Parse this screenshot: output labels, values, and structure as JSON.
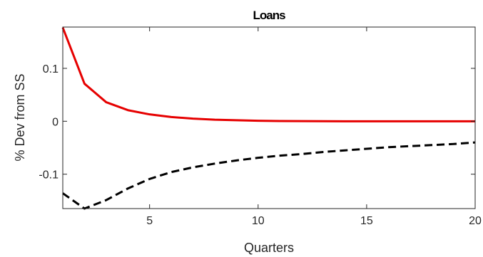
{
  "chart_data": {
    "type": "line",
    "title": "Loans",
    "xlabel": "Quarters",
    "ylabel": "% Dev from SS",
    "xlim": [
      1,
      20
    ],
    "ylim": [
      -0.165,
      0.178
    ],
    "x_ticks": [
      5,
      10,
      15,
      20
    ],
    "y_ticks": [
      -0.1,
      0,
      0.1
    ],
    "x_tick_labels": [
      "5",
      "10",
      "15",
      "20"
    ],
    "y_tick_labels": [
      "-0.1",
      "0",
      "0.1"
    ],
    "grid": false,
    "series": [
      {
        "color": "#e60000",
        "dash": "solid",
        "x": [
          1,
          2,
          3,
          4,
          5,
          6,
          7,
          8,
          9,
          10,
          11,
          12,
          13,
          14,
          15,
          16,
          17,
          18,
          19,
          20
        ],
        "values": [
          0.177,
          0.071,
          0.036,
          0.021,
          0.013,
          0.008,
          0.005,
          0.003,
          0.002,
          0.001,
          0.0005,
          0.0003,
          0.0001,
          0.0,
          -0.0001,
          -0.0001,
          -0.0001,
          -0.0001,
          -0.0001,
          -0.0001
        ]
      },
      {
        "color": "#000000",
        "dash": "dashed",
        "x": [
          1,
          2,
          3,
          4,
          5,
          6,
          7,
          8,
          9,
          10,
          11,
          12,
          13,
          14,
          15,
          16,
          17,
          18,
          19,
          20
        ],
        "values": [
          -0.136,
          -0.165,
          -0.149,
          -0.127,
          -0.109,
          -0.096,
          -0.087,
          -0.08,
          -0.074,
          -0.069,
          -0.065,
          -0.062,
          -0.058,
          -0.055,
          -0.052,
          -0.049,
          -0.047,
          -0.045,
          -0.043,
          -0.04
        ]
      }
    ]
  }
}
